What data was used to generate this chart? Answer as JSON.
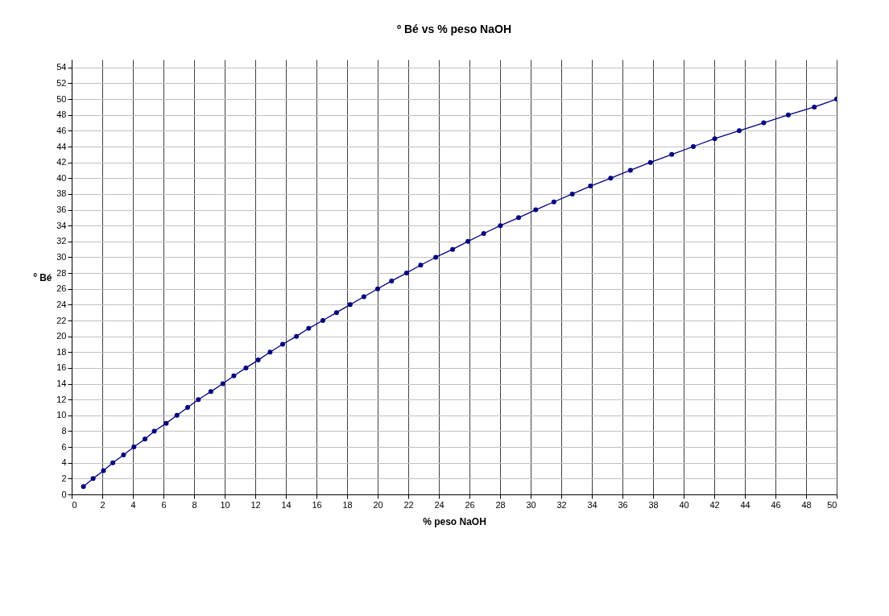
{
  "chart_data": {
    "type": "line",
    "title": "º Bé   vs   % peso  NaOH",
    "xlabel": "%  peso NaOH",
    "ylabel": "º Bé",
    "x": [
      0.77,
      1.4,
      2.08,
      2.69,
      3.39,
      4.07,
      4.79,
      5.4,
      6.18,
      6.88,
      7.58,
      8.28,
      9.1,
      9.88,
      10.6,
      11.39,
      12.19,
      12.97,
      13.79,
      14.69,
      15.49,
      16.42,
      17.31,
      18.2,
      19.1,
      20.0,
      20.91,
      21.89,
      22.81,
      23.8,
      24.9,
      25.9,
      26.93,
      28.02,
      29.21,
      30.33,
      31.52,
      32.72,
      33.91,
      35.23,
      36.52,
      37.83,
      39.22,
      40.63,
      42.03,
      43.63,
      45.23,
      46.84,
      48.54,
      50
    ],
    "series": [
      {
        "color": "#000080",
        "values": [
          1,
          2,
          3,
          4,
          5,
          6,
          7,
          8,
          9,
          10,
          11,
          12,
          13,
          14,
          15,
          16,
          17,
          18,
          19,
          20,
          21,
          22,
          23,
          24,
          25,
          26,
          27,
          28,
          29,
          30,
          31,
          32,
          33,
          34,
          35,
          36,
          37,
          38,
          39,
          40,
          41,
          42,
          43,
          44,
          45,
          46,
          47,
          48,
          49,
          50
        ]
      }
    ],
    "xlim": [
      0,
      50
    ],
    "xticks": [
      0,
      2,
      4,
      6,
      8,
      10,
      12,
      14,
      16,
      18,
      20,
      22,
      24,
      26,
      28,
      30,
      32,
      34,
      36,
      38,
      40,
      42,
      44,
      46,
      48,
      50
    ],
    "ylim": [
      0,
      55
    ],
    "yticks": [
      0,
      2,
      4,
      6,
      8,
      10,
      12,
      14,
      16,
      18,
      20,
      22,
      24,
      26,
      28,
      30,
      32,
      34,
      36,
      38,
      40,
      42,
      44,
      46,
      48,
      50,
      52,
      54
    ],
    "grid": true,
    "marker": "circle",
    "line_style": "solid",
    "legend": false
  }
}
